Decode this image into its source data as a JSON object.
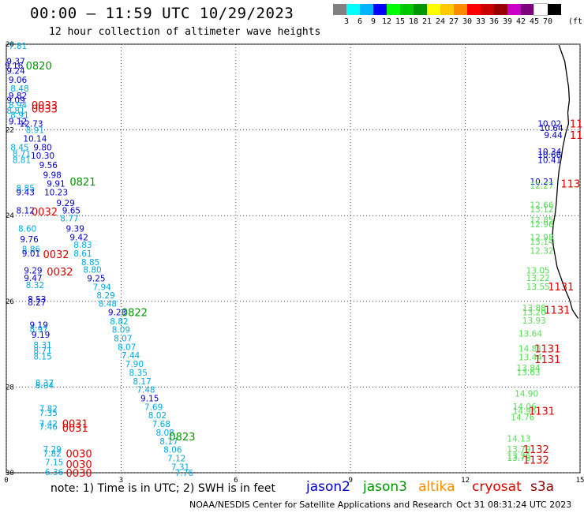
{
  "header": {
    "title": "00:00 – 11:59 UTC 10/29/2023",
    "subtitle": "12 hour collection of altimeter wave heights"
  },
  "legend": {
    "colors": [
      "#808080",
      "#00ffff",
      "#00b4ff",
      "#0000ff",
      "#00ff00",
      "#00c800",
      "#009600",
      "#ffff00",
      "#ffc800",
      "#ff8c00",
      "#ff0000",
      "#c80000",
      "#960000",
      "#c800c8",
      "#7d007d",
      "#ffffff",
      "#000000"
    ],
    "labels": [
      "3",
      "6",
      "9",
      "12",
      "15",
      "18",
      "21",
      "24",
      "27",
      "30",
      "33",
      "36",
      "39",
      "42",
      "45",
      "70"
    ],
    "unit": "(ft)"
  },
  "axes": {
    "x_ticks": [
      "0",
      "3",
      "6",
      "9",
      "12",
      "15"
    ],
    "y_ticks": [
      "20",
      "22",
      "24",
      "26",
      "28",
      "30"
    ]
  },
  "satellites": {
    "jason2": {
      "name": "jason2",
      "color": "#0000cd"
    },
    "jason3": {
      "name": "jason3",
      "color": "#009600"
    },
    "altika": {
      "name": "altika",
      "color": "#ff8c00"
    },
    "cryosat": {
      "name": "cryosat",
      "color": "#dd0000"
    },
    "s3a": {
      "name": "s3a",
      "color": "#8b0000"
    }
  },
  "footer": {
    "note": "note:  1) Time is in UTC;  2) SWH is in feet",
    "credit": "NOAA/NESDIS Center for Satellite Applications and Research",
    "timestamp": "Oct 31 08:31:24 UTC 2023"
  },
  "chart_data": {
    "type": "scatter",
    "xlim": [
      0,
      15
    ],
    "ylim": [
      20,
      30
    ],
    "grid": true,
    "points": [
      {
        "x": 0.3,
        "y": 20.04,
        "label": "7.81",
        "c": "cyan"
      },
      {
        "x": 0.25,
        "y": 20.4,
        "label": "9.37",
        "c": "blue"
      },
      {
        "x": 0.2,
        "y": 20.5,
        "label": "9.16",
        "c": "blue"
      },
      {
        "x": 0.25,
        "y": 20.62,
        "label": "9.24",
        "c": "blue"
      },
      {
        "x": 0.3,
        "y": 20.83,
        "label": "9.06",
        "c": "blue"
      },
      {
        "x": 0.35,
        "y": 21.03,
        "label": "8.48",
        "c": "cyan"
      },
      {
        "x": 0.3,
        "y": 21.2,
        "label": "9.82",
        "c": "blue"
      },
      {
        "x": 0.25,
        "y": 21.3,
        "label": "9.09",
        "c": "blue"
      },
      {
        "x": 0.3,
        "y": 21.42,
        "label": "8.94",
        "c": "cyan"
      },
      {
        "x": 0.25,
        "y": 21.55,
        "label": "8.81",
        "c": "cyan"
      },
      {
        "x": 0.35,
        "y": 21.65,
        "label": "8.91",
        "c": "cyan"
      },
      {
        "x": 0.3,
        "y": 21.8,
        "label": "9.12",
        "c": "blue"
      },
      {
        "x": 0.65,
        "y": 21.85,
        "label": "12.73",
        "c": "blue"
      },
      {
        "x": 0.75,
        "y": 22.0,
        "label": "8.91",
        "c": "cyan"
      },
      {
        "x": 0.75,
        "y": 22.2,
        "label": "10.14",
        "c": "blue"
      },
      {
        "x": 0.95,
        "y": 22.4,
        "label": "9.80",
        "c": "blue"
      },
      {
        "x": 0.35,
        "y": 22.4,
        "label": "8.45",
        "c": "cyan"
      },
      {
        "x": 0.4,
        "y": 22.55,
        "label": "8.71",
        "c": "cyan"
      },
      {
        "x": 0.95,
        "y": 22.6,
        "label": "10.30",
        "c": "blue"
      },
      {
        "x": 0.4,
        "y": 22.7,
        "label": "8.81",
        "c": "cyan"
      },
      {
        "x": 1.1,
        "y": 22.82,
        "label": "9.56",
        "c": "blue"
      },
      {
        "x": 1.2,
        "y": 23.05,
        "label": "9.98",
        "c": "blue"
      },
      {
        "x": 1.3,
        "y": 23.25,
        "label": "9.91",
        "c": "blue"
      },
      {
        "x": 0.5,
        "y": 23.35,
        "label": "8.85",
        "c": "cyan"
      },
      {
        "x": 0.5,
        "y": 23.45,
        "label": "9.43",
        "c": "blue"
      },
      {
        "x": 1.3,
        "y": 23.45,
        "label": "10.23",
        "c": "blue"
      },
      {
        "x": 1.55,
        "y": 23.7,
        "label": "9.29",
        "c": "blue"
      },
      {
        "x": 0.5,
        "y": 23.88,
        "label": "8.12",
        "c": "blue"
      },
      {
        "x": 1.7,
        "y": 23.88,
        "label": "9.65",
        "c": "blue"
      },
      {
        "x": 1.65,
        "y": 24.06,
        "label": "8.77",
        "c": "cyan"
      },
      {
        "x": 0.55,
        "y": 24.3,
        "label": "8.60",
        "c": "cyan"
      },
      {
        "x": 1.8,
        "y": 24.3,
        "label": "9.39",
        "c": "blue"
      },
      {
        "x": 0.6,
        "y": 24.55,
        "label": "9.76",
        "c": "blue"
      },
      {
        "x": 1.9,
        "y": 24.5,
        "label": "9.42",
        "c": "blue"
      },
      {
        "x": 2.0,
        "y": 24.68,
        "label": "8.83",
        "c": "cyan"
      },
      {
        "x": 0.65,
        "y": 24.78,
        "label": "8.86",
        "c": "cyan"
      },
      {
        "x": 0.65,
        "y": 24.88,
        "label": "9.01",
        "c": "blue"
      },
      {
        "x": 2.0,
        "y": 24.88,
        "label": "8.61",
        "c": "cyan"
      },
      {
        "x": 2.2,
        "y": 25.08,
        "label": "8.85",
        "c": "cyan"
      },
      {
        "x": 0.7,
        "y": 25.28,
        "label": "9.29",
        "c": "blue"
      },
      {
        "x": 2.25,
        "y": 25.26,
        "label": "8.80",
        "c": "cyan"
      },
      {
        "x": 0.7,
        "y": 25.45,
        "label": "9.47",
        "c": "blue"
      },
      {
        "x": 2.35,
        "y": 25.46,
        "label": "9.25",
        "c": "blue"
      },
      {
        "x": 0.75,
        "y": 25.62,
        "label": "8.32",
        "c": "cyan"
      },
      {
        "x": 2.5,
        "y": 25.66,
        "label": "7.94",
        "c": "cyan"
      },
      {
        "x": 2.6,
        "y": 25.86,
        "label": "8.29",
        "c": "cyan"
      },
      {
        "x": 0.8,
        "y": 25.95,
        "label": "8.53",
        "c": "blue"
      },
      {
        "x": 0.8,
        "y": 26.02,
        "label": "8.27",
        "c": "blue"
      },
      {
        "x": 2.65,
        "y": 26.05,
        "label": "8.48",
        "c": "cyan"
      },
      {
        "x": 2.9,
        "y": 26.25,
        "label": "9.23",
        "c": "blue"
      },
      {
        "x": 2.95,
        "y": 26.46,
        "label": "8.82",
        "c": "cyan"
      },
      {
        "x": 0.85,
        "y": 26.55,
        "label": "9.19",
        "c": "blue"
      },
      {
        "x": 0.85,
        "y": 26.65,
        "label": "8.97",
        "c": "cyan"
      },
      {
        "x": 3.0,
        "y": 26.66,
        "label": "8.09",
        "c": "cyan"
      },
      {
        "x": 0.9,
        "y": 26.78,
        "label": "9.19",
        "c": "blue"
      },
      {
        "x": 3.05,
        "y": 26.86,
        "label": "8.07",
        "c": "cyan"
      },
      {
        "x": 0.95,
        "y": 27.02,
        "label": "8.31",
        "c": "cyan"
      },
      {
        "x": 3.15,
        "y": 27.06,
        "label": "8.07",
        "c": "cyan"
      },
      {
        "x": 0.95,
        "y": 27.15,
        "label": "8.71",
        "c": "cyan"
      },
      {
        "x": 0.95,
        "y": 27.28,
        "label": "8.15",
        "c": "cyan"
      },
      {
        "x": 3.25,
        "y": 27.26,
        "label": "7.44",
        "c": "cyan"
      },
      {
        "x": 3.35,
        "y": 27.46,
        "label": "7.90",
        "c": "cyan"
      },
      {
        "x": 3.45,
        "y": 27.66,
        "label": "8.35",
        "c": "cyan"
      },
      {
        "x": 3.55,
        "y": 27.86,
        "label": "8.17",
        "c": "cyan"
      },
      {
        "x": 1.0,
        "y": 27.9,
        "label": "8.37",
        "c": "cyan"
      },
      {
        "x": 1.0,
        "y": 27.96,
        "label": "8.04",
        "c": "cyan"
      },
      {
        "x": 3.65,
        "y": 28.06,
        "label": "7.48",
        "c": "cyan"
      },
      {
        "x": 3.75,
        "y": 28.26,
        "label": "9.15",
        "c": "blue"
      },
      {
        "x": 3.85,
        "y": 28.46,
        "label": "7.69",
        "c": "cyan"
      },
      {
        "x": 1.1,
        "y": 28.5,
        "label": "7.82",
        "c": "cyan"
      },
      {
        "x": 1.1,
        "y": 28.6,
        "label": "7.35",
        "c": "cyan"
      },
      {
        "x": 3.95,
        "y": 28.66,
        "label": "8.02",
        "c": "cyan"
      },
      {
        "x": 1.1,
        "y": 28.85,
        "label": "7.42",
        "c": "cyan"
      },
      {
        "x": 1.1,
        "y": 28.92,
        "label": "7.46",
        "c": "cyan"
      },
      {
        "x": 4.05,
        "y": 28.86,
        "label": "7.68",
        "c": "cyan"
      },
      {
        "x": 4.15,
        "y": 29.06,
        "label": "8.08",
        "c": "cyan"
      },
      {
        "x": 4.25,
        "y": 29.26,
        "label": "8.17",
        "c": "cyan"
      },
      {
        "x": 4.35,
        "y": 29.46,
        "label": "8.06",
        "c": "cyan"
      },
      {
        "x": 1.2,
        "y": 29.45,
        "label": "7.29",
        "c": "cyan"
      },
      {
        "x": 1.2,
        "y": 29.55,
        "label": "7.82",
        "c": "cyan"
      },
      {
        "x": 4.45,
        "y": 29.66,
        "label": "7.12",
        "c": "cyan"
      },
      {
        "x": 1.25,
        "y": 29.75,
        "label": "7.15",
        "c": "cyan"
      },
      {
        "x": 4.55,
        "y": 29.86,
        "label": "7.31",
        "c": "cyan"
      },
      {
        "x": 1.25,
        "y": 29.98,
        "label": "6.36",
        "c": "cyan"
      },
      {
        "x": 4.65,
        "y": 30.0,
        "label": "7.76",
        "c": "cyan"
      },
      {
        "x": 14.2,
        "y": 21.85,
        "label": "10.02",
        "c": "blue"
      },
      {
        "x": 14.25,
        "y": 21.95,
        "label": "10.64",
        "c": "blue"
      },
      {
        "x": 14.3,
        "y": 22.12,
        "label": "9.44",
        "c": "blue"
      },
      {
        "x": 14.2,
        "y": 22.5,
        "label": "10.34",
        "c": "blue"
      },
      {
        "x": 14.2,
        "y": 22.58,
        "label": "10.66",
        "c": "blue"
      },
      {
        "x": 14.2,
        "y": 22.7,
        "label": "10.41",
        "c": "blue"
      },
      {
        "x": 14.0,
        "y": 23.2,
        "label": "10.21",
        "c": "blue"
      },
      {
        "x": 14.0,
        "y": 23.3,
        "label": "12.27",
        "c": "lgreen"
      },
      {
        "x": 14.0,
        "y": 23.75,
        "label": "12.66",
        "c": "lgreen"
      },
      {
        "x": 14.0,
        "y": 23.85,
        "label": "13.12",
        "c": "lgreen"
      },
      {
        "x": 14.0,
        "y": 24.1,
        "label": "12.85",
        "c": "lgreen"
      },
      {
        "x": 14.0,
        "y": 24.2,
        "label": "12.96",
        "c": "lgreen"
      },
      {
        "x": 14.0,
        "y": 24.5,
        "label": "12.98",
        "c": "lgreen"
      },
      {
        "x": 14.0,
        "y": 24.6,
        "label": "13.14",
        "c": "lgreen"
      },
      {
        "x": 14.0,
        "y": 24.82,
        "label": "12.32",
        "c": "lgreen"
      },
      {
        "x": 13.9,
        "y": 25.28,
        "label": "13.05",
        "c": "lgreen"
      },
      {
        "x": 13.9,
        "y": 25.45,
        "label": "13.22",
        "c": "lgreen"
      },
      {
        "x": 13.9,
        "y": 25.65,
        "label": "13.55",
        "c": "lgreen"
      },
      {
        "x": 13.8,
        "y": 26.15,
        "label": "13.88",
        "c": "lgreen"
      },
      {
        "x": 13.8,
        "y": 26.25,
        "label": "13.20",
        "c": "lgreen"
      },
      {
        "x": 13.8,
        "y": 26.45,
        "label": "13.93",
        "c": "lgreen"
      },
      {
        "x": 13.7,
        "y": 26.75,
        "label": "13.64",
        "c": "lgreen"
      },
      {
        "x": 13.7,
        "y": 27.1,
        "label": "14.81",
        "c": "lgreen"
      },
      {
        "x": 13.7,
        "y": 27.3,
        "label": "13.44",
        "c": "lgreen"
      },
      {
        "x": 13.65,
        "y": 27.55,
        "label": "13.84",
        "c": "lgreen"
      },
      {
        "x": 13.65,
        "y": 27.65,
        "label": "13.63",
        "c": "lgreen"
      },
      {
        "x": 13.6,
        "y": 28.15,
        "label": "14.90",
        "c": "lgreen"
      },
      {
        "x": 13.55,
        "y": 28.45,
        "label": "14.06",
        "c": "lgreen"
      },
      {
        "x": 13.55,
        "y": 28.55,
        "label": "14.95",
        "c": "lgreen"
      },
      {
        "x": 13.5,
        "y": 28.7,
        "label": "14.76",
        "c": "lgreen"
      },
      {
        "x": 13.4,
        "y": 29.2,
        "label": "14.13",
        "c": "lgreen"
      },
      {
        "x": 13.4,
        "y": 29.45,
        "label": "13.79",
        "c": "lgreen"
      },
      {
        "x": 13.4,
        "y": 29.6,
        "label": "13.76",
        "c": "lgreen"
      },
      {
        "x": 13.4,
        "y": 29.65,
        "label": "13.78",
        "c": "lgreen"
      }
    ],
    "pass_labels": [
      {
        "x": 0.85,
        "y": 20.5,
        "label": "0820",
        "c": "green"
      },
      {
        "x": 2.0,
        "y": 23.2,
        "label": "0821",
        "c": "green"
      },
      {
        "x": 3.35,
        "y": 26.25,
        "label": "0822",
        "c": "green"
      },
      {
        "x": 4.6,
        "y": 29.15,
        "label": "0823",
        "c": "green"
      },
      {
        "x": 1.0,
        "y": 21.42,
        "label": "0033",
        "c": "red"
      },
      {
        "x": 1.0,
        "y": 21.5,
        "label": "0033",
        "c": "red"
      },
      {
        "x": 1.0,
        "y": 23.9,
        "label": "0032",
        "c": "red"
      },
      {
        "x": 1.3,
        "y": 24.9,
        "label": "0032",
        "c": "red"
      },
      {
        "x": 1.4,
        "y": 25.3,
        "label": "0032",
        "c": "red"
      },
      {
        "x": 1.8,
        "y": 28.85,
        "label": "0031",
        "c": "red"
      },
      {
        "x": 1.8,
        "y": 28.95,
        "label": "0031",
        "c": "red"
      },
      {
        "x": 1.9,
        "y": 29.55,
        "label": "0030",
        "c": "red"
      },
      {
        "x": 1.9,
        "y": 29.8,
        "label": "0030",
        "c": "red"
      },
      {
        "x": 1.9,
        "y": 30.0,
        "label": "0030",
        "c": "red"
      },
      {
        "x": 14.9,
        "y": 21.85,
        "label": "11",
        "c": "red"
      },
      {
        "x": 14.9,
        "y": 22.12,
        "label": "11",
        "c": "red"
      },
      {
        "x": 14.75,
        "y": 23.25,
        "label": "113",
        "c": "red"
      },
      {
        "x": 14.5,
        "y": 25.65,
        "label": "1131",
        "c": "red"
      },
      {
        "x": 14.4,
        "y": 26.2,
        "label": "1131",
        "c": "red"
      },
      {
        "x": 14.15,
        "y": 27.1,
        "label": "1131",
        "c": "red"
      },
      {
        "x": 14.15,
        "y": 27.35,
        "label": "1131",
        "c": "red"
      },
      {
        "x": 14.0,
        "y": 28.55,
        "label": "1131",
        "c": "red"
      },
      {
        "x": 13.85,
        "y": 29.45,
        "label": "1132",
        "c": "red"
      },
      {
        "x": 13.85,
        "y": 29.7,
        "label": "1132",
        "c": "red"
      }
    ]
  }
}
